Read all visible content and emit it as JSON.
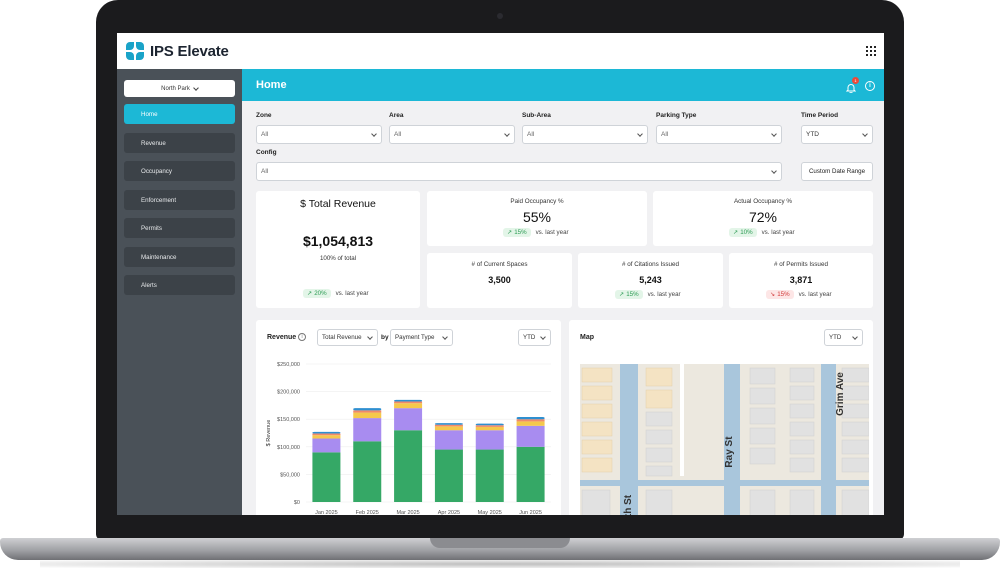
{
  "brand": {
    "name": "IPS Elevate",
    "accent": "#1cb8d6",
    "sidebar_bg": "#4a5158"
  },
  "sidebar": {
    "site_selector": "North Park",
    "items": [
      {
        "label": "Home",
        "active": true
      },
      {
        "label": "Revenue",
        "active": false
      },
      {
        "label": "Occupancy",
        "active": false
      },
      {
        "label": "Enforcement",
        "active": false
      },
      {
        "label": "Permits",
        "active": false
      },
      {
        "label": "Maintenance",
        "active": false
      },
      {
        "label": "Alerts",
        "active": false
      }
    ]
  },
  "header": {
    "title": "Home",
    "notification_count": "1"
  },
  "filters": {
    "zone": {
      "label": "Zone",
      "value": "All"
    },
    "area": {
      "label": "Area",
      "value": "All"
    },
    "sub_area": {
      "label": "Sub-Area",
      "value": "All"
    },
    "parking_type": {
      "label": "Parking Type",
      "value": "All"
    },
    "time_period": {
      "label": "Time Period",
      "value": "YTD"
    },
    "config": {
      "label": "Config",
      "value": "All"
    },
    "custom_range_button": "Custom Date Range"
  },
  "kpis": {
    "total_revenue": {
      "title": "$ Total Revenue",
      "value": "$1,054,813",
      "sub": "100% of total",
      "trend": "20%",
      "direction": "up",
      "compare": "vs. last year"
    },
    "paid_occupancy": {
      "title": "Paid Occupancy %",
      "value": "55%",
      "trend": "15%",
      "direction": "up",
      "compare": "vs. last year"
    },
    "actual_occupancy": {
      "title": "Actual Occupancy %",
      "value": "72%",
      "trend": "10%",
      "direction": "up",
      "compare": "vs. last year"
    },
    "current_spaces": {
      "title": "# of Current Spaces",
      "value": "3,500"
    },
    "citations": {
      "title": "# of Citations Issued",
      "value": "5,243",
      "trend": "15%",
      "direction": "up",
      "compare": "vs. last year"
    },
    "permits": {
      "title": "# of Permits Issued",
      "value": "3,871",
      "trend": "15%",
      "direction": "down",
      "compare": "vs. last year"
    }
  },
  "revenue_panel": {
    "title": "Revenue",
    "metric_select": "Total Revenue",
    "by_label": "by",
    "group_select": "Payment Type",
    "period_select": "YTD"
  },
  "map_panel": {
    "title": "Map",
    "period_select": "YTD",
    "street_labels": [
      "Ray St",
      "Grim Ave",
      "th St"
    ]
  },
  "chart_data": {
    "type": "bar",
    "stacked": true,
    "ylabel": "$ Revenue",
    "ylim": [
      0,
      250000
    ],
    "yticks": [
      "$0",
      "$50,000",
      "$100,000",
      "$150,000",
      "$200,000",
      "$250,000"
    ],
    "categories": [
      "Jan 2025",
      "Feb 2025",
      "Mar 2025",
      "Apr 2025",
      "May 2025",
      "Jun 2025"
    ],
    "series": [
      {
        "color": "#35a866",
        "values": [
          90000,
          110000,
          130000,
          95000,
          95000,
          100000
        ]
      },
      {
        "color": "#a88cf0",
        "values": [
          25000,
          42000,
          40000,
          35000,
          35000,
          38000
        ]
      },
      {
        "color": "#f5c84c",
        "values": [
          6000,
          10000,
          9000,
          7000,
          6000,
          8000
        ]
      },
      {
        "color": "#f08a6a",
        "values": [
          3000,
          4000,
          3000,
          3000,
          3000,
          4000
        ]
      },
      {
        "color": "#2e8fd0",
        "values": [
          3000,
          4000,
          3000,
          3000,
          3000,
          4000
        ]
      }
    ]
  }
}
